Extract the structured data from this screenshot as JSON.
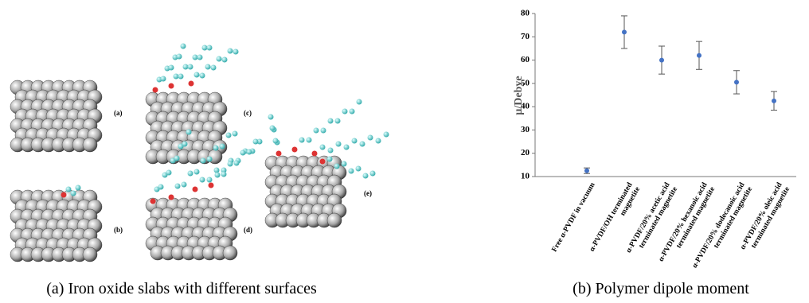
{
  "figure": {
    "panel_labels": [
      "(a)",
      "(b)",
      "(c)",
      "(d)",
      "(e)"
    ],
    "captions": [
      "(a) Iron oxide slabs with different surfaces",
      "(b) Polymer dipole moment"
    ]
  },
  "chart_data": {
    "type": "errorbar",
    "y_label": "μ/Debye",
    "categories": [
      "Free α-PVDF in vacuum",
      "α-PVDF/OH terminated magnetite",
      "α-PVDF/20% acetic acid terminated magnetite",
      "α-PVDF/20% hexanoic acid terminated magnetite",
      "α-PVDF/20% dodecanoic acid terminated magnetite",
      "α-PVDF/20% oleic acid terminated magnetite"
    ],
    "values": [
      12.5,
      72,
      60,
      62,
      50.5,
      42.5
    ],
    "errors": [
      1.2,
      7,
      6,
      6,
      5,
      4
    ],
    "color": "#4472c4",
    "ylim": [
      10,
      80
    ],
    "yticks": [
      10,
      20,
      30,
      40,
      50,
      60,
      70,
      80
    ]
  }
}
